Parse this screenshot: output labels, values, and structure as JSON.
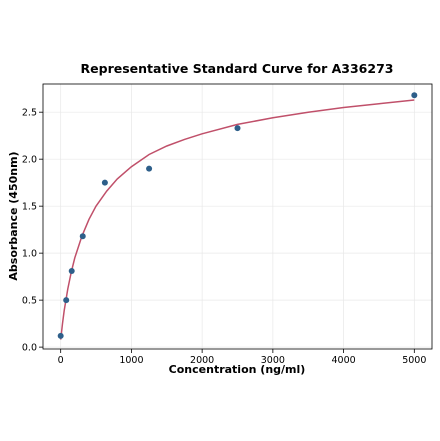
{
  "chart_data": {
    "type": "scatter",
    "title": "Representative Standard Curve for A336273",
    "xlabel": "Concentration (ng/ml)",
    "ylabel": "Absorbance (450nm)",
    "xlim": [
      -250,
      5250
    ],
    "ylim": [
      -0.02,
      2.8
    ],
    "x_ticks": [
      0,
      1000,
      2000,
      3000,
      4000,
      5000
    ],
    "y_ticks": [
      0.0,
      0.5,
      1.0,
      1.5,
      2.0,
      2.5
    ],
    "x_tick_labels": [
      "0",
      "1000",
      "2000",
      "3000",
      "4000",
      "5000"
    ],
    "y_tick_labels": [
      "0.0",
      "0.5",
      "1.0",
      "1.5",
      "2.0",
      "2.5"
    ],
    "grid": true,
    "points": {
      "x": [
        0,
        78,
        156,
        312,
        625,
        1250,
        2500,
        5000
      ],
      "y": [
        0.12,
        0.5,
        0.81,
        1.18,
        1.75,
        1.9,
        2.33,
        2.68
      ],
      "color": "#2e5f8a"
    },
    "fit_curve": {
      "x": [
        0,
        25,
        50,
        100,
        150,
        200,
        300,
        400,
        500,
        650,
        800,
        1000,
        1250,
        1500,
        1750,
        2000,
        2500,
        3000,
        3500,
        4000,
        4500,
        5000
      ],
      "y": [
        0.08,
        0.25,
        0.39,
        0.62,
        0.8,
        0.95,
        1.18,
        1.36,
        1.5,
        1.66,
        1.79,
        1.92,
        2.05,
        2.14,
        2.21,
        2.27,
        2.37,
        2.44,
        2.5,
        2.55,
        2.59,
        2.63
      ],
      "color": "#c0506a"
    }
  }
}
